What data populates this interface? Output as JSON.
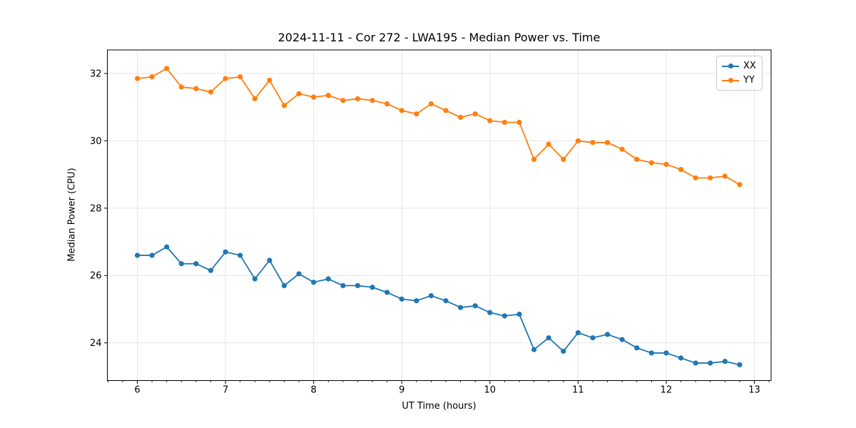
{
  "figure": {
    "background": "#ffffff"
  },
  "chart_data": {
    "type": "line",
    "title": "2024-11-11 - Cor 272 - LWA195 - Median Power vs. Time",
    "xlabel": "UT Time (hours)",
    "ylabel": "Median Power (CPU)",
    "xlim": [
      5.66,
      13.19
    ],
    "ylim": [
      22.88,
      32.7
    ],
    "x_ticks": [
      6,
      7,
      8,
      9,
      10,
      11,
      12,
      13
    ],
    "y_ticks": [
      24,
      26,
      28,
      30,
      32
    ],
    "x_minor_step": 0.166667,
    "grid": true,
    "legend_position": "upper right",
    "marker": "o",
    "x": [
      6.0,
      6.1667,
      6.3333,
      6.5,
      6.6667,
      6.8333,
      7.0,
      7.1667,
      7.3333,
      7.5,
      7.6667,
      7.8333,
      8.0,
      8.1667,
      8.3333,
      8.5,
      8.6667,
      8.8333,
      9.0,
      9.1667,
      9.3333,
      9.5,
      9.6667,
      9.8333,
      10.0,
      10.1667,
      10.3333,
      10.5,
      10.6667,
      10.8333,
      11.0,
      11.1667,
      11.3333,
      11.5,
      11.6667,
      11.8333,
      12.0,
      12.1667,
      12.3333,
      12.5,
      12.6667,
      12.8333
    ],
    "series": [
      {
        "name": "XX",
        "color": "#1f77b4",
        "values": [
          26.6,
          26.6,
          26.85,
          26.35,
          26.35,
          26.15,
          26.7,
          26.6,
          25.9,
          26.45,
          25.7,
          26.05,
          25.8,
          25.9,
          25.7,
          25.7,
          25.65,
          25.5,
          25.3,
          25.25,
          25.4,
          25.25,
          25.05,
          25.1,
          24.9,
          24.8,
          24.85,
          23.8,
          24.15,
          23.75,
          24.3,
          24.15,
          24.25,
          24.1,
          23.85,
          23.7,
          23.7,
          23.55,
          23.4,
          23.4,
          23.45,
          23.35
        ]
      },
      {
        "name": "YY",
        "color": "#ff7f0e",
        "values": [
          31.85,
          31.9,
          32.15,
          31.6,
          31.55,
          31.45,
          31.85,
          31.9,
          31.25,
          31.8,
          31.05,
          31.4,
          31.3,
          31.35,
          31.2,
          31.25,
          31.2,
          31.1,
          30.9,
          30.8,
          31.1,
          30.9,
          30.7,
          30.8,
          30.6,
          30.55,
          30.55,
          29.45,
          29.9,
          29.45,
          30.0,
          29.95,
          29.95,
          29.75,
          29.45,
          29.35,
          29.3,
          29.15,
          28.9,
          28.9,
          28.95,
          28.7
        ]
      }
    ]
  },
  "colors": {
    "grid": "#e6e6e6",
    "spine": "#000000",
    "tick": "#000000",
    "text": "#000000",
    "legend_border": "#cccccc"
  }
}
